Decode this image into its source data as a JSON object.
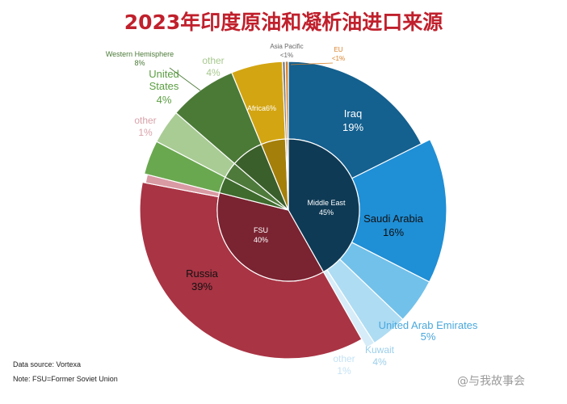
{
  "chart_data": {
    "type": "pie",
    "title": "2023年印度原油和凝析油进口来源",
    "inner": [
      {
        "label": "Middle East",
        "value": "45%",
        "color": "#0f3a55"
      },
      {
        "label": "FSU",
        "value": "40%",
        "color": "#7a2331"
      }
    ],
    "outer": [
      {
        "label": "Iraq",
        "value": "19%",
        "color": "#14608f"
      },
      {
        "label": "Saudi Arabia",
        "value": "16%",
        "color": "#1f8fd6"
      },
      {
        "label": "United Arab Emirates",
        "value": "5%",
        "color": "#72c1ea"
      },
      {
        "label": "Kuwait",
        "value": "4%",
        "color": "#aedcf3"
      },
      {
        "label": "other",
        "value": "1%",
        "color": "#d6ecf8"
      },
      {
        "label": "Russia",
        "value": "39%",
        "color": "#a93444"
      },
      {
        "label": "other",
        "value": "1%",
        "color": "#d99aa3"
      },
      {
        "label": "United States",
        "value": "4%",
        "color": "#6aa84f"
      },
      {
        "label": "other",
        "value": "4%",
        "color": "#a9cc95"
      },
      {
        "label": "Western Hemisphere",
        "value": "8%",
        "color": "#4b7a37"
      },
      {
        "label": "Africa",
        "value": "6%",
        "color": "#d3a512"
      },
      {
        "label": "Asia Pacific",
        "value": "<1%",
        "color": "#7f7f7f"
      },
      {
        "label": "EU",
        "value": "<1%",
        "color": "#d9822b"
      }
    ]
  },
  "footer": {
    "source": "Data source: Vortexa",
    "note": "Note: FSU=Former Soviet Union"
  },
  "watermark": "@与我故事会"
}
